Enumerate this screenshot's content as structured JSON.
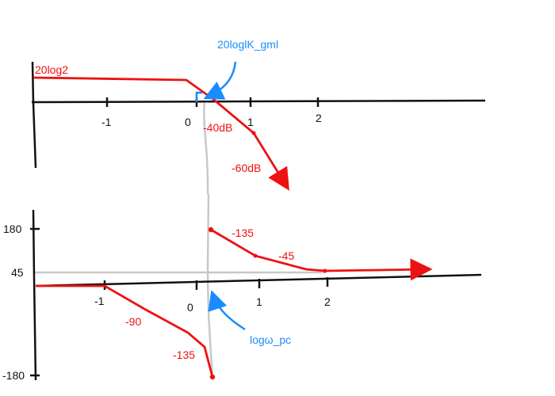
{
  "colors": {
    "axis": "#111111",
    "curve": "#ee1111",
    "annotation": "#1a8cff",
    "guide": "#c8c8c8"
  },
  "magnitude": {
    "axis_ticks": [
      "-1",
      "0",
      "1",
      "2"
    ],
    "start_label": "20log2",
    "slope1_label": "-40dB",
    "slope2_label": "-60dB",
    "annotation": "20loglK_gml"
  },
  "phase": {
    "axis_ticks": [
      "-1",
      "0",
      "1",
      "2"
    ],
    "y_labels": [
      "180",
      "45",
      "-180"
    ],
    "upper_label1": "-135",
    "upper_label2": "-45",
    "lower_label1": "-90",
    "lower_label2": "-135",
    "annotation": "logω_pc"
  }
}
